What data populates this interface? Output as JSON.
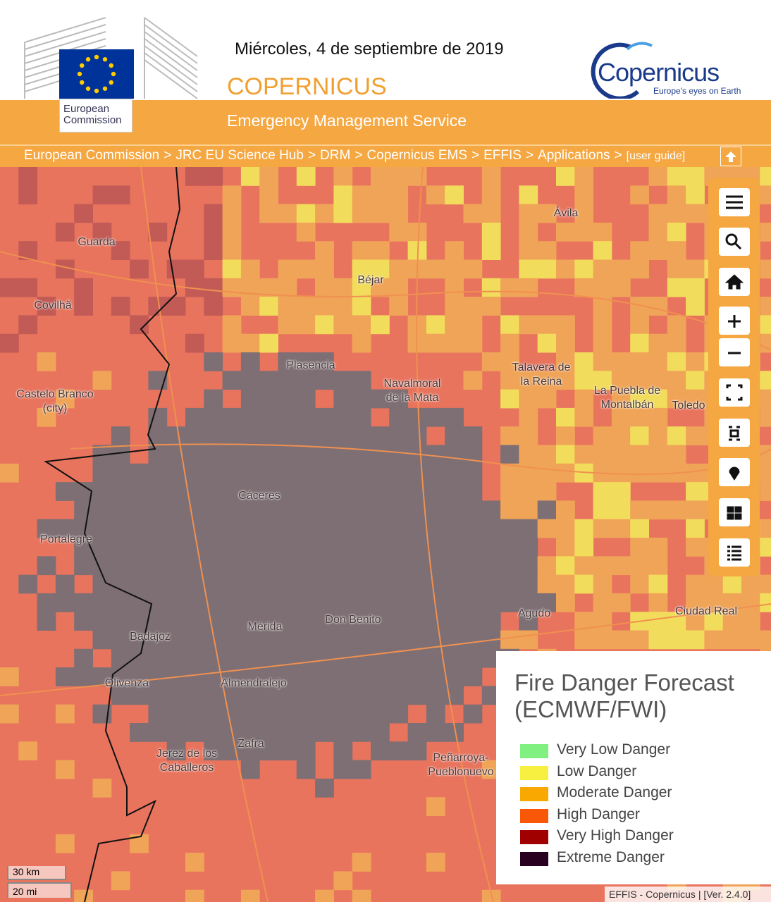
{
  "header": {
    "date": "Miércoles, 4 de septiembre de 2019",
    "title": "COPERNICUS",
    "subtitle": "Emergency Management Service",
    "ec_logo": [
      "European",
      "Commission"
    ],
    "copernicus_logo": "Copernicus",
    "copernicus_tagline": "Europe's eyes on Earth"
  },
  "breadcrumb": {
    "separator": ">",
    "items": [
      "European Commission",
      "JRC EU Science Hub",
      "DRM",
      "Copernicus EMS",
      "EFFIS",
      "Applications"
    ],
    "guide": "[user guide]"
  },
  "map": {
    "places": [
      "Guarda",
      "Ávila",
      "Béjar",
      "Covilhã",
      "Plasencia",
      "Navalmoral de la Mata",
      "Talavera de la Reina",
      "La Puebla de Montalbán",
      "Toledo",
      "Castelo Branco (city)",
      "Cáceres",
      "Portalegre",
      "Mérida",
      "Don Benito",
      "Agudo",
      "Ciudad Real",
      "Badajoz",
      "Olivenza",
      "Almendralejo",
      "Zafra",
      "Jerez de los Caballeros",
      "Peñarroya-Pueblonuevo"
    ],
    "scale": [
      "30 km",
      "20 mi"
    ],
    "attribution": "EFFIS - Copernicus | [Ver. 2.4.0]"
  },
  "legend": {
    "title": "Fire Danger Forecast (ECMWF/FWI)",
    "items": [
      {
        "name": "Very Low Danger",
        "color": "#80f080"
      },
      {
        "name": "Low Danger",
        "color": "#f8f040"
      },
      {
        "name": "Moderate Danger",
        "color": "#f8a800"
      },
      {
        "name": "High Danger",
        "color": "#f85808"
      },
      {
        "name": "Very High Danger",
        "color": "#a00000"
      },
      {
        "name": "Extreme Danger",
        "color": "#2a0020"
      }
    ]
  }
}
